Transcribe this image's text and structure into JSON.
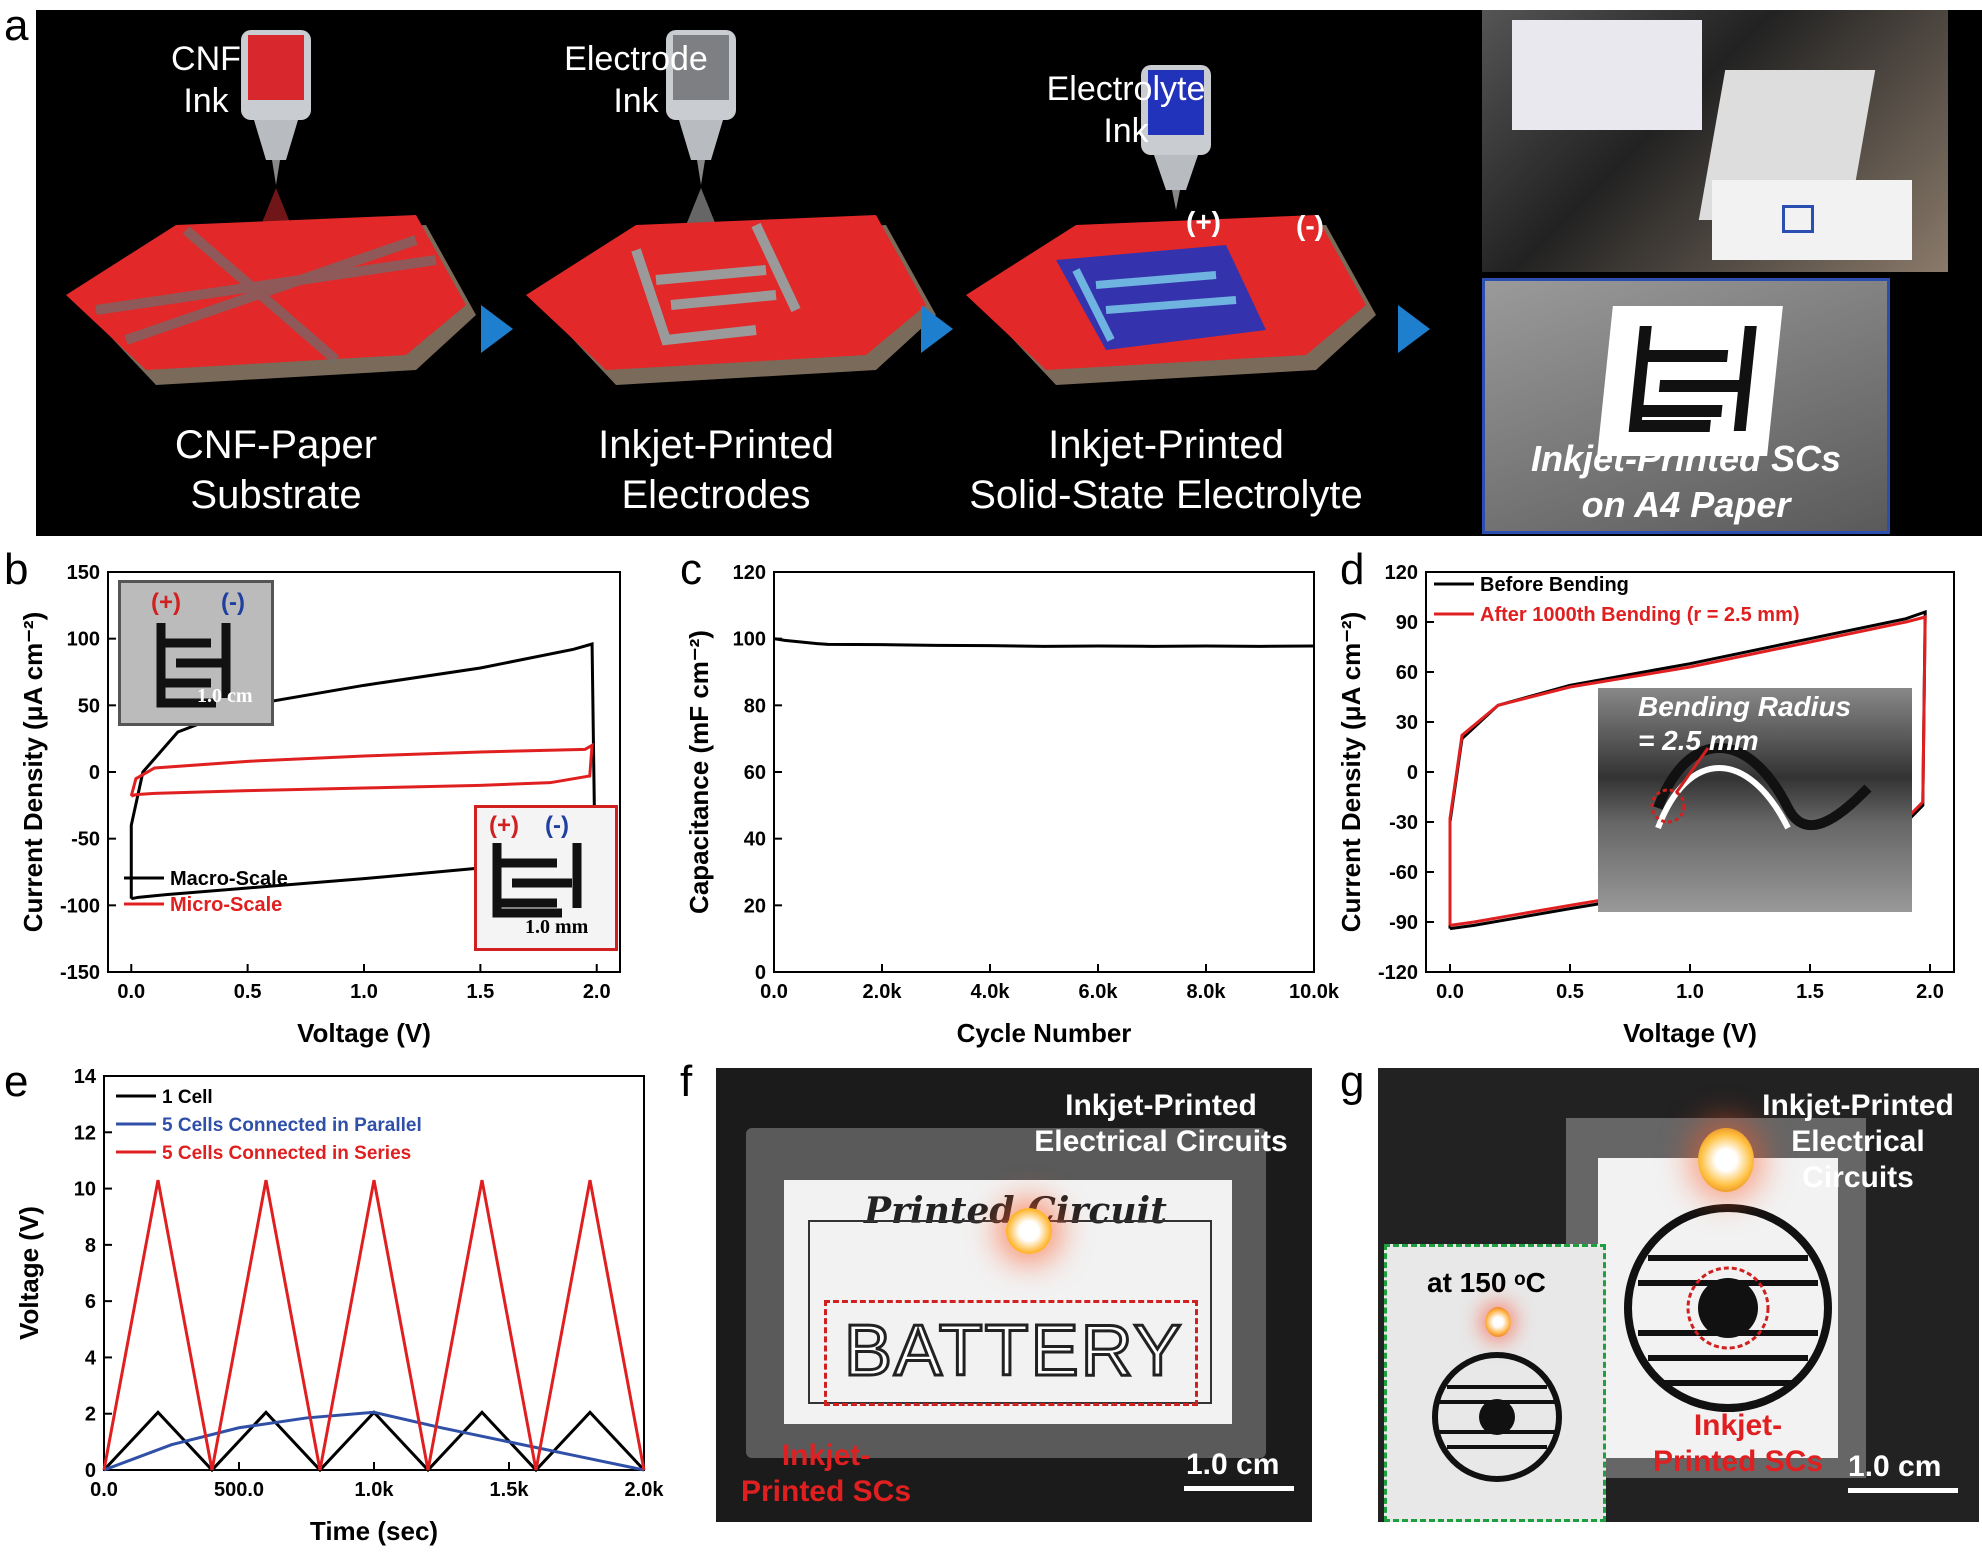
{
  "panel_labels": {
    "a": "a",
    "b": "b",
    "c": "c",
    "d": "d",
    "e": "e",
    "f": "f",
    "g": "g"
  },
  "panel_a": {
    "steps": [
      {
        "ink_line1": "CNF",
        "ink_line2": "Ink",
        "caption_line1": "CNF-Paper",
        "caption_line2": "Substrate",
        "ink_color": "#d8282e"
      },
      {
        "ink_line1": "Electrode",
        "ink_line2": "Ink",
        "caption_line1": "Inkjet-Printed",
        "caption_line2": "Electrodes",
        "ink_color": "#8a8a8a"
      },
      {
        "ink_line1": "Electrolyte",
        "ink_line2": "Ink",
        "caption_line1": "Inkjet-Printed",
        "caption_line2": "Solid-State  Electrolyte",
        "ink_color": "#2233bb"
      }
    ],
    "plus_label": "(+)",
    "minus_label": "(-)",
    "photo_caption_line1": "Inkjet-Printed SCs",
    "photo_caption_line2": "on A4 Paper",
    "arrow_color": "#1f7fcf"
  },
  "chart_data": [
    {
      "id": "b",
      "type": "line",
      "xlabel": "Voltage (V)",
      "ylabel": "Current Density (μA cm⁻²)",
      "xlim": [
        -0.1,
        2.1
      ],
      "ylim": [
        -150,
        150
      ],
      "xticks": [
        "0.0",
        "0.5",
        "1.0",
        "1.5",
        "2.0"
      ],
      "xtick_values": [
        0,
        0.5,
        1.0,
        1.5,
        2.0
      ],
      "yticks": [
        "150",
        "100",
        "50",
        "0",
        "-50",
        "-100",
        "-150"
      ],
      "ytick_values": [
        150,
        100,
        50,
        0,
        -50,
        -100,
        -150
      ],
      "series": [
        {
          "name": "Macro-Scale",
          "color": "#000000",
          "x": [
            0,
            0,
            0.05,
            0.2,
            0.5,
            1.0,
            1.5,
            1.9,
            1.98,
            1.99,
            1.95,
            1.8,
            1.5,
            1.0,
            0.5,
            0.15,
            0.03,
            0
          ],
          "y": [
            -95,
            -40,
            0,
            30,
            50,
            65,
            78,
            92,
            96,
            -30,
            -55,
            -65,
            -72,
            -80,
            -87,
            -92,
            -94,
            -95
          ]
        },
        {
          "name": "Micro-Scale",
          "color": "#e02020",
          "x": [
            0,
            0.02,
            0.1,
            0.5,
            1.0,
            1.5,
            1.95,
            1.98,
            1.97,
            1.8,
            1.5,
            1.0,
            0.5,
            0.1,
            0.02,
            0
          ],
          "y": [
            -18,
            -5,
            3,
            8,
            12,
            15,
            17,
            20,
            -3,
            -8,
            -10,
            -12,
            -14,
            -16,
            -17,
            -18
          ]
        }
      ],
      "inset_macro_scale_bar": "1.0 cm",
      "inset_micro_scale_bar": "1.0 mm",
      "inset_plus": "(+)",
      "inset_minus": "(-)",
      "legend": "bottom-left"
    },
    {
      "id": "c",
      "type": "line",
      "xlabel": "Cycle Number",
      "ylabel": "Capacitance (mF cm⁻²)",
      "xlim": [
        0,
        10000
      ],
      "ylim": [
        0,
        120
      ],
      "xticks": [
        "0.0",
        "2.0k",
        "4.0k",
        "6.0k",
        "8.0k",
        "10.0k"
      ],
      "xtick_values": [
        0,
        2000,
        4000,
        6000,
        8000,
        10000
      ],
      "yticks": [
        "120",
        "100",
        "80",
        "60",
        "40",
        "20",
        "0"
      ],
      "ytick_values": [
        120,
        100,
        80,
        60,
        40,
        20,
        0
      ],
      "series": [
        {
          "color": "#000000",
          "x": [
            0,
            200,
            500,
            800,
            1000,
            2000,
            3000,
            4000,
            5000,
            6000,
            7000,
            8000,
            9000,
            10000
          ],
          "y": [
            100,
            99.5,
            99,
            98.5,
            98.3,
            98.2,
            98,
            97.9,
            97.7,
            97.8,
            97.7,
            97.8,
            97.7,
            97.8
          ]
        }
      ]
    },
    {
      "id": "d",
      "type": "line",
      "xlabel": "Voltage (V)",
      "ylabel": "Current Density (μA cm⁻²)",
      "xlim": [
        -0.1,
        2.1
      ],
      "ylim": [
        -120,
        120
      ],
      "xticks": [
        "0.0",
        "0.5",
        "1.0",
        "1.5",
        "2.0"
      ],
      "xtick_values": [
        0,
        0.5,
        1.0,
        1.5,
        2.0
      ],
      "yticks": [
        "120",
        "90",
        "60",
        "30",
        "0",
        "-30",
        "-60",
        "-90",
        "-120"
      ],
      "ytick_values": [
        120,
        90,
        60,
        30,
        0,
        -30,
        -60,
        -90,
        -120
      ],
      "series": [
        {
          "name": "Before Bending",
          "color": "#000000",
          "x": [
            0,
            0,
            0.05,
            0.2,
            0.5,
            1.0,
            1.5,
            1.9,
            1.98,
            1.97,
            1.8,
            1.5,
            1.0,
            0.5,
            0.1,
            0
          ],
          "y": [
            -94,
            -30,
            20,
            40,
            52,
            65,
            80,
            92,
            96,
            -20,
            -45,
            -58,
            -70,
            -82,
            -92,
            -94
          ]
        },
        {
          "name": "After 1000th Bending (r = 2.5 mm)",
          "color": "#e02020",
          "x": [
            0,
            0,
            0.05,
            0.2,
            0.5,
            1.0,
            1.5,
            1.9,
            1.98,
            1.97,
            1.8,
            1.5,
            1.0,
            0.5,
            0.1,
            0
          ],
          "y": [
            -92,
            -28,
            22,
            40,
            51,
            63,
            78,
            90,
            93,
            -18,
            -43,
            -56,
            -68,
            -80,
            -90,
            -92
          ]
        }
      ],
      "inset_text_line1": "Bending Radius",
      "inset_text_line2": "= 2.5 mm",
      "legend": "top-left"
    },
    {
      "id": "e",
      "type": "line",
      "xlabel": "Time (sec)",
      "ylabel": "Voltage (V)",
      "xlim": [
        0,
        2000
      ],
      "ylim": [
        0,
        14
      ],
      "xticks": [
        "0.0",
        "500.0",
        "1.0k",
        "1.5k",
        "2.0k"
      ],
      "xtick_values": [
        0,
        500,
        1000,
        1500,
        2000
      ],
      "yticks": [
        "14",
        "12",
        "10",
        "8",
        "6",
        "4",
        "2",
        "0"
      ],
      "ytick_values": [
        14,
        12,
        10,
        8,
        6,
        4,
        2,
        0
      ],
      "series": [
        {
          "name": "1 Cell",
          "color": "#000000",
          "x": [
            0,
            200,
            400,
            600,
            800,
            1000,
            1200,
            1400,
            1600,
            1800,
            2000
          ],
          "y": [
            0,
            2.05,
            0,
            2.05,
            0,
            2.05,
            0,
            2.05,
            0,
            2.05,
            0
          ]
        },
        {
          "name": "5 Cells Connected in Parallel",
          "color": "#3050a8",
          "x": [
            0,
            250,
            500,
            750,
            1000,
            1250,
            1500,
            1750,
            2000
          ],
          "y": [
            0,
            0.9,
            1.5,
            1.85,
            2.05,
            1.5,
            1.0,
            0.5,
            0
          ]
        },
        {
          "name": "5 Cells Connected in Series",
          "color": "#e02020",
          "x": [
            0,
            200,
            400,
            600,
            800,
            1000,
            1200,
            1400,
            1600,
            1800,
            2000
          ],
          "y": [
            0,
            10.3,
            0,
            10.3,
            0,
            10.3,
            0,
            10.3,
            0,
            10.3,
            0
          ]
        }
      ],
      "legend": "top-left"
    }
  ],
  "panel_f": {
    "label_circuits_line1": "Inkjet-Printed",
    "label_circuits_line2": "Electrical Circuits",
    "label_scs_line1": "Inkjet-",
    "label_scs_line2": "Printed SCs",
    "scale_bar": "1.0 cm",
    "card_title": "Printed Circuit",
    "card_word": "BATTERY"
  },
  "panel_g": {
    "label_circuits_line1": "Inkjet-Printed",
    "label_circuits_line2": "Electrical",
    "label_circuits_line3": "Circuits",
    "label_scs_line1": "Inkjet-",
    "label_scs_line2": "Printed SCs",
    "scale_bar": "1.0 cm",
    "temp_label": "at 150 ᵒC"
  }
}
